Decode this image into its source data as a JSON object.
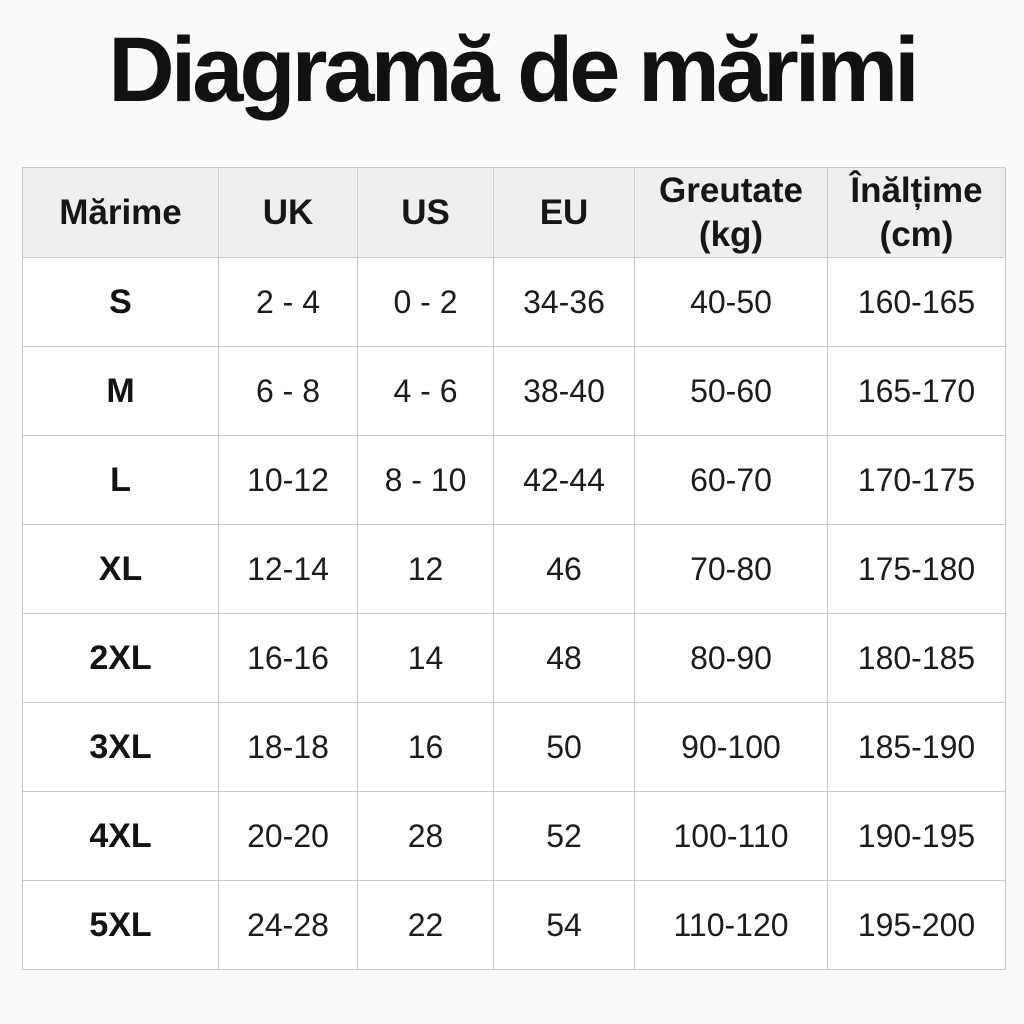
{
  "page": {
    "title": "Diagramă de mărimi",
    "background_color": "#fbfbfb"
  },
  "table": {
    "header_bg_color": "#efefef",
    "body_bg_color": "#ffffff",
    "border_color": "#c9c9c9",
    "columns": [
      "Mărime",
      "UK",
      "US",
      "EU",
      "Greutate (kg)",
      "Înălțime (cm)"
    ],
    "rows": [
      [
        "S",
        "2 - 4",
        "0 - 2",
        "34-36",
        "40-50",
        "160-165"
      ],
      [
        "M",
        "6 - 8",
        "4 - 6",
        "38-40",
        "50-60",
        "165-170"
      ],
      [
        "L",
        "10-12",
        "8 - 10",
        "42-44",
        "60-70",
        "170-175"
      ],
      [
        "XL",
        "12-14",
        "12",
        "46",
        "70-80",
        "175-180"
      ],
      [
        "2XL",
        "16-16",
        "14",
        "48",
        "80-90",
        "180-185"
      ],
      [
        "3XL",
        "18-18",
        "16",
        "50",
        "90-100",
        "185-190"
      ],
      [
        "4XL",
        "20-20",
        "28",
        "52",
        "100-110",
        "190-195"
      ],
      [
        "5XL",
        "24-28",
        "22",
        "54",
        "110-120",
        "195-200"
      ]
    ]
  },
  "chart_data": {
    "type": "table",
    "title": "Diagramă de mărimi",
    "columns": [
      "Mărime",
      "UK",
      "US",
      "EU",
      "Greutate (kg)",
      "Înălțime (cm)"
    ],
    "rows": [
      [
        "S",
        "2-4",
        "0-2",
        "34-36",
        "40-50",
        "160-165"
      ],
      [
        "M",
        "6-8",
        "4-6",
        "38-40",
        "50-60",
        "165-170"
      ],
      [
        "L",
        "10-12",
        "8-10",
        "42-44",
        "60-70",
        "170-175"
      ],
      [
        "XL",
        "12-14",
        "12",
        "46",
        "70-80",
        "175-180"
      ],
      [
        "2XL",
        "16-16",
        "14",
        "48",
        "80-90",
        "180-185"
      ],
      [
        "3XL",
        "18-18",
        "16",
        "50",
        "90-100",
        "185-190"
      ],
      [
        "4XL",
        "20-20",
        "28",
        "52",
        "100-110",
        "190-195"
      ],
      [
        "5XL",
        "24-28",
        "22",
        "54",
        "110-120",
        "195-200"
      ]
    ],
    "layout": {
      "header_background": "#efefef",
      "grid": true,
      "first_column_bold": true
    }
  }
}
